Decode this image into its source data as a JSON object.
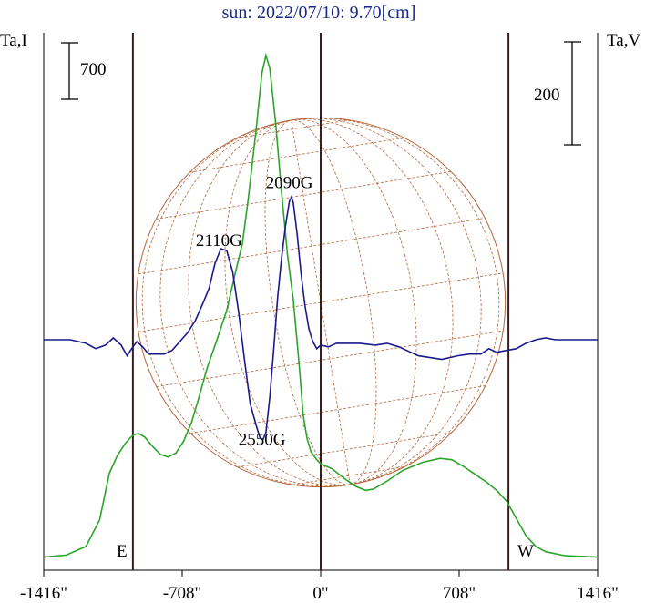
{
  "chart_data": {
    "type": "line",
    "title": "sun: 2022/07/10: 9.70[cm]",
    "left_axis_label": "Ta,I",
    "right_axis_label": "Ta,V",
    "left_scale_bar": "700",
    "right_scale_bar": "200",
    "x_ticks": [
      "-1416\"",
      "-708\"",
      "0\"",
      "708\"",
      "1416\""
    ],
    "x_tick_values": [
      -1416,
      -708,
      0,
      708,
      1416
    ],
    "xlim": [
      -1416,
      1416
    ],
    "vertical_lines_x": [
      -960,
      0,
      960
    ],
    "limb_labels": {
      "east": "E",
      "west": "W"
    },
    "solar_radius_arcsec": 944,
    "annotations": [
      {
        "text": "2110G",
        "x": -520,
        "yV": 105
      },
      {
        "text": "2090G",
        "x": -160,
        "yV": 170
      },
      {
        "text": "2550G",
        "x": -300,
        "yV": -118
      }
    ],
    "colors": {
      "intensity": "#2aa52a",
      "polarization": "#1a1a8c",
      "disk": "#b5663c",
      "frame": "#3a1e1e"
    },
    "series": [
      {
        "key": "intensity",
        "unit": "K",
        "points": [
          [
            -1416,
            30
          ],
          [
            -1300,
            45
          ],
          [
            -1200,
            110
          ],
          [
            -1130,
            310
          ],
          [
            -1080,
            660
          ],
          [
            -1040,
            790
          ],
          [
            -1000,
            880
          ],
          [
            -970,
            930
          ],
          [
            -950,
            950
          ],
          [
            -930,
            955
          ],
          [
            -900,
            930
          ],
          [
            -860,
            860
          ],
          [
            -820,
            800
          ],
          [
            -780,
            780
          ],
          [
            -740,
            810
          ],
          [
            -700,
            900
          ],
          [
            -660,
            1040
          ],
          [
            -620,
            1240
          ],
          [
            -580,
            1450
          ],
          [
            -530,
            1660
          ],
          [
            -480,
            1880
          ],
          [
            -430,
            2200
          ],
          [
            -400,
            2380
          ],
          [
            -370,
            2720
          ],
          [
            -330,
            3240
          ],
          [
            -300,
            3660
          ],
          [
            -280,
            3790
          ],
          [
            -260,
            3690
          ],
          [
            -230,
            3280
          ],
          [
            -200,
            2760
          ],
          [
            -170,
            2300
          ],
          [
            -140,
            1960
          ],
          [
            -110,
            1470
          ],
          [
            -90,
            1100
          ],
          [
            -70,
            920
          ],
          [
            -50,
            820
          ],
          [
            -20,
            760
          ],
          [
            0,
            730
          ],
          [
            60,
            690
          ],
          [
            120,
            620
          ],
          [
            180,
            560
          ],
          [
            230,
            530
          ],
          [
            270,
            540
          ],
          [
            340,
            600
          ],
          [
            420,
            680
          ],
          [
            520,
            740
          ],
          [
            610,
            770
          ],
          [
            670,
            760
          ],
          [
            730,
            710
          ],
          [
            790,
            650
          ],
          [
            850,
            590
          ],
          [
            900,
            530
          ],
          [
            950,
            450
          ],
          [
            1000,
            320
          ],
          [
            1050,
            190
          ],
          [
            1100,
            110
          ],
          [
            1150,
            70
          ],
          [
            1250,
            40
          ],
          [
            1416,
            30
          ]
        ]
      },
      {
        "key": "polarization",
        "unit": "K",
        "points": [
          [
            -1416,
            0
          ],
          [
            -1280,
            0
          ],
          [
            -1200,
            -4
          ],
          [
            -1150,
            -10
          ],
          [
            -1100,
            -6
          ],
          [
            -1060,
            2
          ],
          [
            -1020,
            -6
          ],
          [
            -990,
            -18
          ],
          [
            -960,
            -8
          ],
          [
            -940,
            -2
          ],
          [
            -910,
            -8
          ],
          [
            -880,
            -16
          ],
          [
            -840,
            -16
          ],
          [
            -800,
            -16
          ],
          [
            -760,
            -12
          ],
          [
            -720,
            -2
          ],
          [
            -680,
            8
          ],
          [
            -640,
            22
          ],
          [
            -600,
            42
          ],
          [
            -570,
            58
          ],
          [
            -540,
            86
          ],
          [
            -510,
            102
          ],
          [
            -480,
            100
          ],
          [
            -450,
            76
          ],
          [
            -420,
            32
          ],
          [
            -390,
            -22
          ],
          [
            -360,
            -72
          ],
          [
            -330,
            -96
          ],
          [
            -310,
            -110
          ],
          [
            -295,
            -112
          ],
          [
            -280,
            -104
          ],
          [
            -260,
            -64
          ],
          [
            -240,
            -10
          ],
          [
            -220,
            48
          ],
          [
            -200,
            92
          ],
          [
            -180,
            128
          ],
          [
            -160,
            155
          ],
          [
            -150,
            160
          ],
          [
            -140,
            154
          ],
          [
            -120,
            118
          ],
          [
            -100,
            74
          ],
          [
            -80,
            38
          ],
          [
            -60,
            12
          ],
          [
            -40,
            -2
          ],
          [
            -20,
            -10
          ],
          [
            0,
            -6
          ],
          [
            40,
            -8
          ],
          [
            80,
            -4
          ],
          [
            130,
            -4
          ],
          [
            200,
            -4
          ],
          [
            280,
            -6
          ],
          [
            340,
            -4
          ],
          [
            400,
            -8
          ],
          [
            460,
            -14
          ],
          [
            500,
            -18
          ],
          [
            560,
            -20
          ],
          [
            620,
            -22
          ],
          [
            700,
            -18
          ],
          [
            760,
            -16
          ],
          [
            820,
            -16
          ],
          [
            860,
            -10
          ],
          [
            900,
            -14
          ],
          [
            950,
            -12
          ],
          [
            1000,
            -10
          ],
          [
            1050,
            -4
          ],
          [
            1100,
            0
          ],
          [
            1150,
            2
          ],
          [
            1200,
            0
          ],
          [
            1416,
            0
          ]
        ]
      }
    ]
  }
}
